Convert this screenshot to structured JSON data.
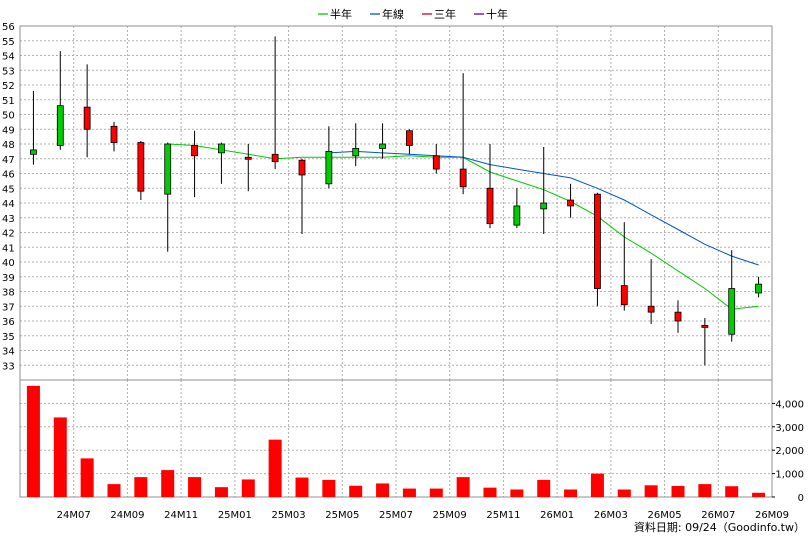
{
  "chart_data": [
    {
      "type": "candlestick",
      "legend": [
        {
          "name": "半年",
          "color": "#00cc00"
        },
        {
          "name": "年線",
          "color": "#0055cc"
        },
        {
          "name": "三年",
          "color": "#cc0033"
        },
        {
          "name": "十年",
          "color": "#5500aa"
        }
      ],
      "ylim": [
        32,
        56
      ],
      "yticks": [
        33,
        34,
        35,
        36,
        37,
        38,
        39,
        40,
        41,
        42,
        43,
        44,
        45,
        46,
        47,
        48,
        49,
        50,
        51,
        52,
        53,
        54,
        55,
        56
      ],
      "xticks": [
        "24M07",
        "24M09",
        "24M11",
        "25M01",
        "25M03",
        "25M05",
        "25M07",
        "25M09",
        "25M11",
        "26M01",
        "26M03",
        "26M05",
        "26M07",
        "26M09"
      ],
      "up_color": "#00cc00",
      "down_color": "#ff0000",
      "candles": [
        {
          "o": 47.3,
          "h": 51.6,
          "l": 46.6,
          "c": 47.6
        },
        {
          "o": 47.9,
          "h": 54.3,
          "l": 47.6,
          "c": 50.6
        },
        {
          "o": 50.5,
          "h": 53.4,
          "l": 47.1,
          "c": 49.0
        },
        {
          "o": 49.2,
          "h": 49.5,
          "l": 47.5,
          "c": 48.1
        },
        {
          "o": 48.1,
          "h": 48.2,
          "l": 44.2,
          "c": 44.8
        },
        {
          "o": 44.6,
          "h": 48.1,
          "l": 40.7,
          "c": 48.0
        },
        {
          "o": 47.9,
          "h": 48.9,
          "l": 44.4,
          "c": 47.2
        },
        {
          "o": 47.4,
          "h": 48.1,
          "l": 45.3,
          "c": 48.0
        },
        {
          "o": 47.1,
          "h": 48.0,
          "l": 44.8,
          "c": 47.0
        },
        {
          "o": 47.3,
          "h": 55.3,
          "l": 46.3,
          "c": 46.8
        },
        {
          "o": 46.9,
          "h": 47.0,
          "l": 41.9,
          "c": 45.9
        },
        {
          "o": 45.3,
          "h": 49.2,
          "l": 45.0,
          "c": 47.5
        },
        {
          "o": 47.2,
          "h": 49.4,
          "l": 46.5,
          "c": 47.7
        },
        {
          "o": 47.7,
          "h": 49.4,
          "l": 47.0,
          "c": 48.0
        },
        {
          "o": 48.9,
          "h": 49.0,
          "l": 47.3,
          "c": 47.9
        },
        {
          "o": 47.2,
          "h": 48.0,
          "l": 46.0,
          "c": 46.3
        },
        {
          "o": 46.3,
          "h": 52.8,
          "l": 44.6,
          "c": 45.1
        },
        {
          "o": 45.0,
          "h": 48.0,
          "l": 42.3,
          "c": 42.6
        },
        {
          "o": 42.5,
          "h": 45.0,
          "l": 42.3,
          "c": 43.8
        },
        {
          "o": 43.6,
          "h": 47.8,
          "l": 41.9,
          "c": 44.0
        },
        {
          "o": 44.2,
          "h": 45.3,
          "l": 43.0,
          "c": 43.8
        },
        {
          "o": 44.6,
          "h": 44.7,
          "l": 37.0,
          "c": 38.2
        },
        {
          "o": 38.4,
          "h": 42.7,
          "l": 36.7,
          "c": 37.1
        },
        {
          "o": 37.0,
          "h": 40.2,
          "l": 35.8,
          "c": 36.6
        },
        {
          "o": 36.6,
          "h": 37.4,
          "l": 35.2,
          "c": 36.0
        },
        {
          "o": 35.7,
          "h": 36.2,
          "l": 33.0,
          "c": 35.6
        },
        {
          "o": 35.1,
          "h": 40.8,
          "l": 34.6,
          "c": 38.2
        },
        {
          "o": 37.9,
          "h": 39.0,
          "l": 37.6,
          "c": 38.5
        }
      ],
      "ma_half_year": [
        null,
        null,
        null,
        null,
        null,
        48.0,
        47.9,
        47.6,
        47.3,
        47.0,
        47.1,
        47.1,
        47.1,
        47.1,
        47.2,
        47.1,
        47.1,
        46.1,
        45.5,
        44.9,
        44.1,
        43.1,
        41.7,
        40.6,
        39.4,
        38.2,
        36.8,
        37.0
      ],
      "ma_year": [
        null,
        null,
        null,
        null,
        null,
        null,
        null,
        null,
        null,
        null,
        null,
        47.4,
        47.5,
        47.4,
        47.3,
        47.2,
        47.1,
        46.6,
        46.3,
        46.0,
        45.7,
        45.0,
        44.2,
        43.2,
        42.2,
        41.2,
        40.4,
        39.8
      ]
    },
    {
      "type": "bar",
      "color": "#ff0000",
      "ylim": [
        0,
        5000
      ],
      "yticks": [
        0,
        1000,
        2000,
        3000,
        4000
      ],
      "ytick_labels": [
        "0",
        "1,000",
        "2,000",
        "3,000",
        "4,000"
      ],
      "values": [
        4750,
        3400,
        1650,
        550,
        850,
        1150,
        850,
        420,
        750,
        2450,
        830,
        730,
        480,
        580,
        360,
        360,
        850,
        400,
        320,
        730,
        320,
        1000,
        320,
        500,
        470,
        550,
        460,
        180
      ]
    }
  ],
  "footer": "資料日期: 09/24（Goodinfo.tw）"
}
